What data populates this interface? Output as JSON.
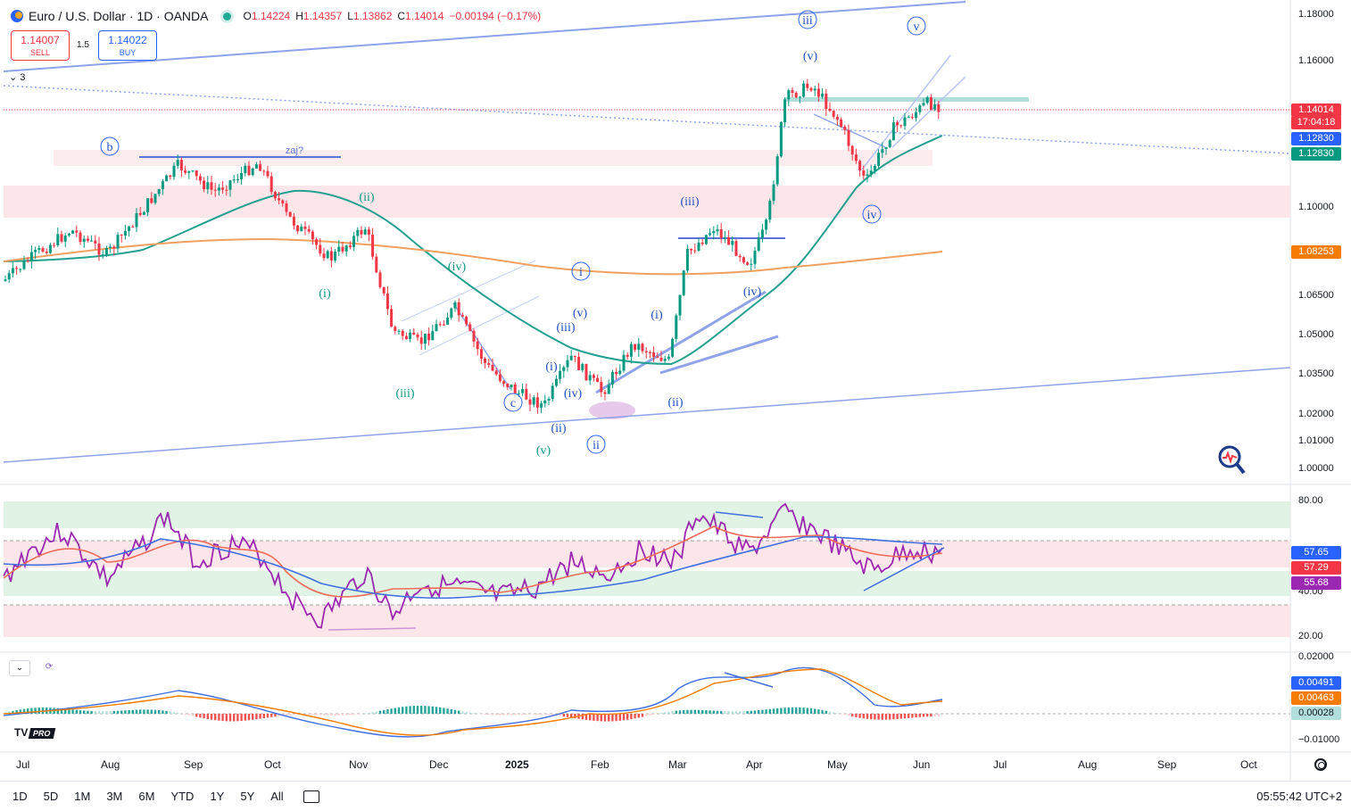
{
  "header": {
    "symbol_title": "Euro / U.S. Dollar · 1D · OANDA",
    "ohlc": [
      {
        "label": "O",
        "value": "1.14224"
      },
      {
        "label": "H",
        "value": "1.14357"
      },
      {
        "label": "L",
        "value": "1.13862"
      },
      {
        "label": "C",
        "value": "1.14014"
      }
    ],
    "change": "−0.00194 (−0.17%)"
  },
  "trade": {
    "sell_price": "1.14007",
    "sell_label": "SELL",
    "spread": "1.5",
    "buy_price": "1.14022",
    "buy_label": "BUY"
  },
  "indicator_toggle": "3",
  "price_axis": {
    "ticks": [
      "1.18000",
      "1.16000",
      "1.10000",
      "1.06500",
      "1.05000",
      "1.03500",
      "1.02000",
      "1.01000",
      "1.00000"
    ],
    "tags": [
      {
        "text": "1.14014",
        "sub": "17:04:18",
        "color": "#f23645"
      },
      {
        "text": "1.12830",
        "color": "#2962ff"
      },
      {
        "text": "1.12830",
        "color": "#089981"
      },
      {
        "text": "1.08253",
        "color": "#f57c00"
      }
    ]
  },
  "rsi_axis": {
    "ticks": [
      "80.00",
      "40.00",
      "20.00"
    ],
    "tags": [
      {
        "text": "57.65",
        "color": "#2962ff"
      },
      {
        "text": "57.29",
        "color": "#f23645"
      },
      {
        "text": "55.68",
        "color": "#9c27b0"
      }
    ]
  },
  "macd_axis": {
    "ticks": [
      "0.02000",
      "−0.01000"
    ],
    "tags": [
      {
        "text": "0.00491",
        "color": "#2962ff"
      },
      {
        "text": "0.00463",
        "color": "#f57c00"
      },
      {
        "text": "0.00028",
        "color": "#b2dfdb",
        "textcolor": "#131722"
      }
    ]
  },
  "time_axis": [
    "Jul",
    "Aug",
    "Sep",
    "Oct",
    "Nov",
    "Dec",
    "2025",
    "Feb",
    "Mar",
    "Apr",
    "May",
    "Jun",
    "Jul",
    "Aug",
    "Sep",
    "Oct"
  ],
  "wave_labels_green": [
    "(ii)",
    "(iv)",
    "(i)",
    "(iii)",
    "(v)"
  ],
  "wave_labels_blue": [
    "iii",
    "v",
    "(v)",
    "b",
    "(iii)",
    "i",
    "(v)",
    "(iii)",
    "(i)",
    "(i)",
    "(iv)",
    "(iv)",
    "iv",
    "c",
    "(ii)",
    "ii",
    "(ii)"
  ],
  "annotation": "zaj?",
  "bottom_bar": {
    "ranges": [
      "1D",
      "5D",
      "1M",
      "3M",
      "6M",
      "YTD",
      "1Y",
      "5Y",
      "All"
    ],
    "clock": "05:55:42 UTC+2"
  },
  "logo": {
    "pro": "PRO"
  },
  "colors": {
    "up": "#089981",
    "down": "#f23645",
    "wave_blue": "#2962ff",
    "wave_green": "#089981",
    "rsi": "#9c27b0",
    "ma200": "#f57c00"
  },
  "icons": [
    "symbol-icon",
    "zoom-icon",
    "settings-icon",
    "goto-date-icon",
    "collapse-icon",
    "refresh-icon"
  ]
}
